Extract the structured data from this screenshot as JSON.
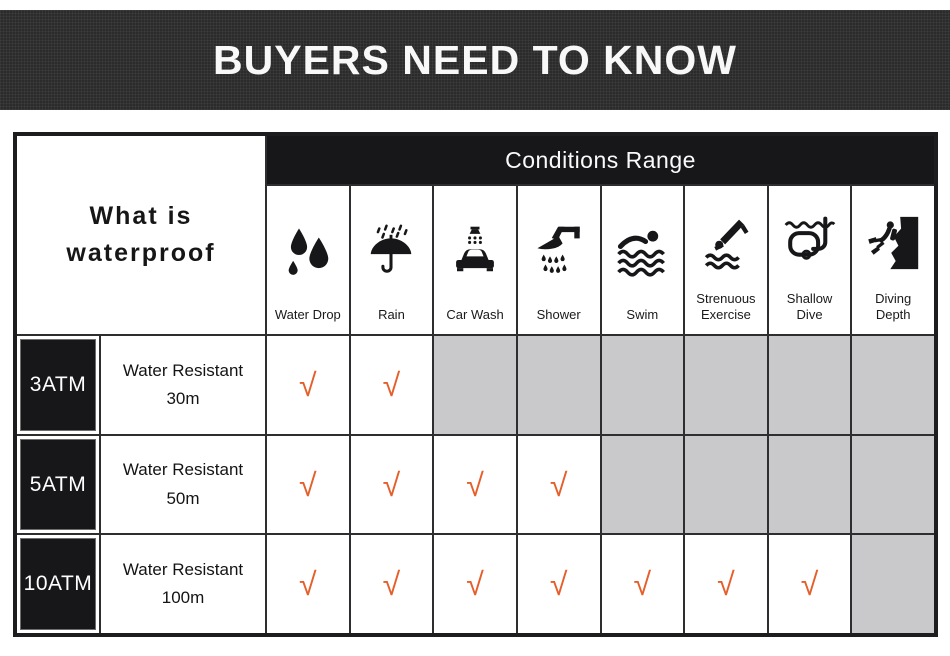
{
  "banner": {
    "title": "BUYERS NEED TO KNOW"
  },
  "table": {
    "corner": {
      "line1": "What is",
      "line2": "waterproof"
    },
    "conditions_header": "Conditions Range",
    "check_glyph": "√",
    "columns": [
      {
        "label": "Water Drop",
        "icon": "water-drop-icon"
      },
      {
        "label": "Rain",
        "icon": "umbrella-rain-icon"
      },
      {
        "label": "Car Wash",
        "icon": "car-wash-icon"
      },
      {
        "label": "Shower",
        "icon": "shower-icon"
      },
      {
        "label": "Swim",
        "icon": "swimmer-icon"
      },
      {
        "label": "Strenuous\nExercise",
        "icon": "strenuous-exercise-icon"
      },
      {
        "label": "Shallow\nDive",
        "icon": "shallow-dive-icon"
      },
      {
        "label": "Diving\nDepth",
        "icon": "diving-depth-icon"
      }
    ],
    "rows": [
      {
        "rating": "3ATM",
        "description_line1": "Water Resistant",
        "description_line2": "30m",
        "checks": [
          true,
          true,
          false,
          false,
          false,
          false,
          false,
          false
        ]
      },
      {
        "rating": "5ATM",
        "description_line1": "Water Resistant",
        "description_line2": "50m",
        "checks": [
          true,
          true,
          true,
          true,
          false,
          false,
          false,
          false
        ]
      },
      {
        "rating": "10ATM",
        "description_line1": "Water Resistant",
        "description_line2": "100m",
        "checks": [
          true,
          true,
          true,
          true,
          true,
          true,
          true,
          false
        ]
      }
    ]
  },
  "colors": {
    "check": "#e55f2b",
    "disabled_cell": "#c9c9cb",
    "header_bg": "#17171a",
    "banner_bg": "#2b2b2b"
  }
}
